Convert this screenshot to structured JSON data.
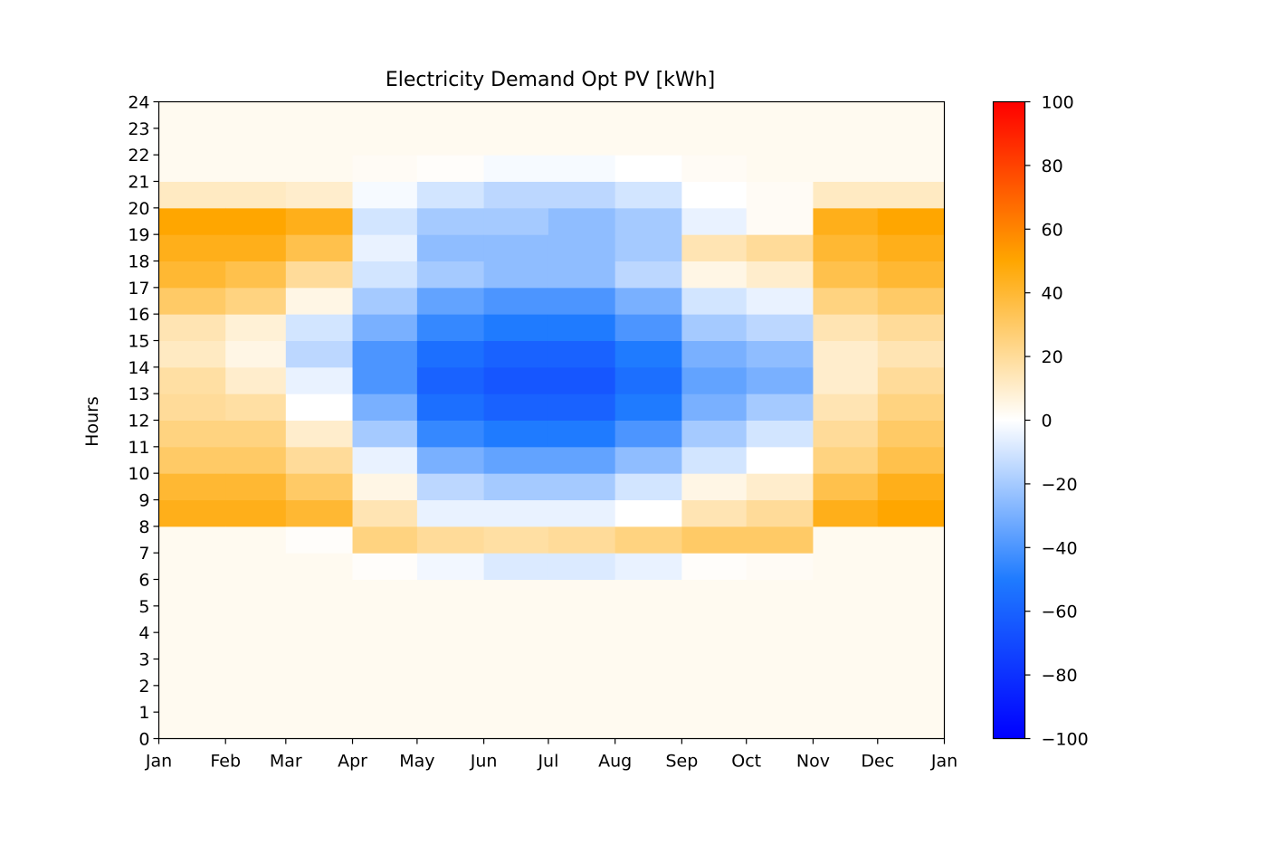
{
  "chart_data": {
    "type": "heatmap",
    "title": "Electricity Demand Opt PV [kWh]",
    "xlabel": "",
    "ylabel": "Hours",
    "x_ticks": [
      "Jan",
      "Feb",
      "Mar",
      "Apr",
      "May",
      "Jun",
      "Jul",
      "Aug",
      "Sep",
      "Oct",
      "Nov",
      "Dec",
      "Jan"
    ],
    "y_ticks": [
      "0",
      "1",
      "2",
      "3",
      "4",
      "5",
      "6",
      "7",
      "8",
      "9",
      "10",
      "11",
      "12",
      "13",
      "14",
      "15",
      "16",
      "17",
      "18",
      "19",
      "20",
      "21",
      "22",
      "23",
      "24"
    ],
    "xlim": [
      0,
      365
    ],
    "ylim": [
      0,
      24
    ],
    "colorbar": {
      "range": [
        -100,
        100
      ],
      "ticks": [
        "100",
        "80",
        "60",
        "40",
        "20",
        "0",
        "−20",
        "−40",
        "−60",
        "−80",
        "−100"
      ],
      "colormap": [
        "#0000ff",
        "#1f7bff",
        "#ffffff",
        "#ffa600",
        "#ff0000"
      ]
    },
    "monthly_hourly_approx": {
      "months": [
        "Jan",
        "Feb",
        "Mar",
        "Apr",
        "May",
        "Jun",
        "Jul",
        "Aug",
        "Sep",
        "Oct",
        "Nov",
        "Dec"
      ],
      "hours": [
        0,
        1,
        2,
        3,
        4,
        5,
        6,
        7,
        8,
        9,
        10,
        11,
        12,
        13,
        14,
        15,
        16,
        17,
        18,
        19,
        20,
        21,
        22,
        23
      ],
      "values": [
        [
          3,
          3,
          3,
          3,
          3,
          3,
          3,
          3,
          45,
          40,
          30,
          25,
          20,
          18,
          12,
          15,
          30,
          40,
          45,
          50,
          12,
          3,
          3,
          3
        ],
        [
          3,
          3,
          3,
          3,
          3,
          3,
          3,
          3,
          45,
          40,
          30,
          25,
          18,
          10,
          5,
          8,
          25,
          35,
          45,
          50,
          12,
          3,
          3,
          3
        ],
        [
          3,
          3,
          3,
          3,
          3,
          3,
          3,
          1,
          40,
          30,
          20,
          10,
          0,
          -5,
          -15,
          -10,
          5,
          20,
          35,
          45,
          10,
          3,
          3,
          3
        ],
        [
          3,
          3,
          3,
          3,
          3,
          3,
          1,
          25,
          15,
          5,
          -5,
          -20,
          -30,
          -40,
          -40,
          -30,
          -20,
          -10,
          -5,
          -10,
          -2,
          2,
          3,
          3
        ],
        [
          3,
          3,
          3,
          3,
          3,
          3,
          -3,
          20,
          -5,
          -15,
          -30,
          -45,
          -55,
          -60,
          -55,
          -45,
          -35,
          -20,
          -25,
          -20,
          -10,
          1,
          3,
          3
        ],
        [
          3,
          3,
          3,
          3,
          3,
          3,
          -8,
          18,
          -5,
          -20,
          -35,
          -50,
          -60,
          -65,
          -60,
          -50,
          -40,
          -25,
          -25,
          -20,
          -15,
          -2,
          3,
          3
        ],
        [
          3,
          3,
          3,
          3,
          3,
          3,
          -8,
          20,
          -5,
          -20,
          -35,
          -50,
          -60,
          -65,
          -60,
          -50,
          -40,
          -25,
          -25,
          -25,
          -15,
          -2,
          3,
          3
        ],
        [
          3,
          3,
          3,
          3,
          3,
          3,
          -5,
          25,
          0,
          -10,
          -25,
          -40,
          -50,
          -55,
          -50,
          -40,
          -30,
          -15,
          -20,
          -20,
          -10,
          0,
          3,
          3
        ],
        [
          3,
          3,
          3,
          3,
          3,
          3,
          1,
          30,
          15,
          5,
          -10,
          -20,
          -30,
          -35,
          -30,
          -20,
          -10,
          5,
          15,
          -5,
          0,
          2,
          3,
          3
        ],
        [
          3,
          3,
          3,
          3,
          3,
          3,
          2,
          30,
          20,
          10,
          0,
          -10,
          -20,
          -30,
          -25,
          -15,
          -5,
          10,
          20,
          2,
          2,
          3,
          3,
          3
        ],
        [
          3,
          3,
          3,
          3,
          3,
          3,
          3,
          3,
          45,
          35,
          25,
          20,
          15,
          10,
          10,
          15,
          25,
          35,
          40,
          45,
          12,
          3,
          3,
          3
        ],
        [
          3,
          3,
          3,
          3,
          3,
          3,
          3,
          3,
          50,
          45,
          35,
          30,
          25,
          20,
          15,
          20,
          30,
          40,
          45,
          50,
          12,
          3,
          3,
          3
        ]
      ]
    }
  }
}
